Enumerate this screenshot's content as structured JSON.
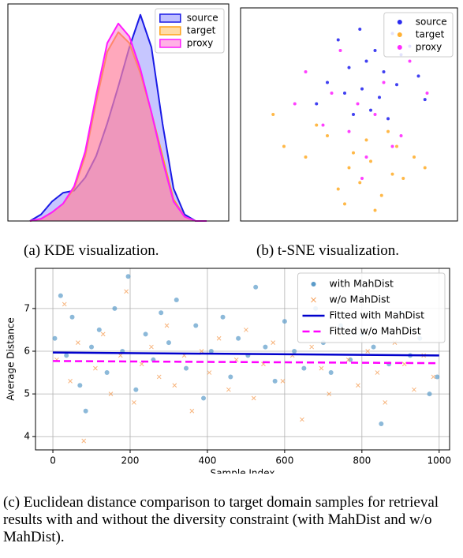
{
  "chart_data": [
    {
      "type": "kde",
      "caption": "(a) KDE visualization.",
      "legend": "upper right",
      "xlim": [
        0,
        100
      ],
      "ylim": [
        0,
        1
      ],
      "x": [
        10,
        15,
        20,
        25,
        30,
        35,
        40,
        45,
        50,
        55,
        60,
        65,
        70,
        75,
        80,
        85,
        90
      ],
      "series": [
        {
          "name": "source",
          "color": "#1a1ae6",
          "fill": "#8080ff",
          "values": [
            0,
            0.03,
            0.09,
            0.13,
            0.14,
            0.2,
            0.3,
            0.45,
            0.62,
            0.8,
            0.95,
            0.8,
            0.45,
            0.15,
            0.03,
            0,
            0
          ]
        },
        {
          "name": "target",
          "color": "#ffa31a",
          "fill": "#ffb84d",
          "values": [
            0,
            0.01,
            0.04,
            0.08,
            0.15,
            0.3,
            0.55,
            0.78,
            0.87,
            0.82,
            0.68,
            0.5,
            0.3,
            0.1,
            0.02,
            0,
            0
          ]
        },
        {
          "name": "proxy",
          "color": "#ff1aff",
          "fill": "#ff66cc",
          "values": [
            0,
            0.01,
            0.04,
            0.08,
            0.16,
            0.32,
            0.58,
            0.82,
            0.91,
            0.85,
            0.7,
            0.5,
            0.28,
            0.09,
            0.02,
            0,
            0
          ]
        }
      ]
    },
    {
      "type": "scatter",
      "caption": "(b) t-SNE visualization.",
      "legend": "upper right",
      "xlim": [
        0,
        100
      ],
      "ylim": [
        0,
        100
      ],
      "series": [
        {
          "name": "source",
          "color": "#2b2bf0",
          "x": [
            45,
            55,
            62,
            70,
            78,
            50,
            58,
            66,
            74,
            82,
            40,
            48,
            56,
            64,
            72,
            52,
            60,
            68,
            35,
            85
          ],
          "values": [
            85,
            90,
            80,
            88,
            82,
            72,
            75,
            70,
            78,
            68,
            65,
            60,
            62,
            58,
            64,
            50,
            52,
            48,
            55,
            57
          ]
        },
        {
          "name": "target",
          "color": "#ffb033",
          "x": [
            20,
            30,
            40,
            50,
            60,
            70,
            80,
            45,
            55,
            65,
            75,
            35,
            58,
            68,
            48,
            62,
            72,
            85,
            15,
            52
          ],
          "values": [
            35,
            30,
            40,
            25,
            28,
            22,
            30,
            15,
            18,
            12,
            20,
            45,
            38,
            42,
            8,
            5,
            35,
            25,
            50,
            32
          ]
        },
        {
          "name": "proxy",
          "color": "#ff2bff",
          "x": [
            30,
            42,
            54,
            66,
            78,
            38,
            50,
            62,
            74,
            46,
            58,
            70,
            25,
            86,
            56
          ],
          "values": [
            70,
            60,
            55,
            65,
            75,
            45,
            42,
            50,
            40,
            80,
            30,
            35,
            55,
            60,
            20
          ]
        }
      ]
    },
    {
      "type": "scatter",
      "caption": "(c) Euclidean distance comparison to target domain samples for retrieval results with and without the diversity constraint (with MahDist and w/o MahDist).",
      "xlabel": "Sample Index",
      "ylabel": "Average Distance",
      "legend": "upper right",
      "grid": true,
      "xlim": [
        -45,
        1027
      ],
      "ylim": [
        3.69,
        7.94
      ],
      "xticks": [
        0,
        200,
        400,
        600,
        800,
        1000
      ],
      "yticks": [
        4,
        5,
        6,
        7
      ],
      "series": [
        {
          "name": "with MahDist",
          "color": "#5b9bc9",
          "marker": "circle",
          "x": [
            5,
            20,
            35,
            50,
            70,
            85,
            100,
            120,
            140,
            160,
            180,
            195,
            215,
            240,
            260,
            280,
            300,
            320,
            345,
            370,
            390,
            410,
            440,
            460,
            480,
            505,
            525,
            550,
            575,
            600,
            625,
            650,
            680,
            700,
            720,
            745,
            770,
            800,
            830,
            850,
            870,
            900,
            925,
            950,
            975,
            995
          ],
          "values": [
            6.3,
            7.3,
            5.9,
            6.8,
            5.2,
            4.6,
            6.1,
            6.5,
            5.5,
            7.0,
            6.0,
            7.75,
            5.1,
            6.4,
            5.8,
            6.9,
            6.2,
            7.2,
            5.6,
            6.6,
            4.9,
            6.0,
            6.8,
            5.4,
            6.3,
            5.9,
            7.5,
            6.1,
            5.3,
            6.7,
            6.0,
            5.6,
            7.0,
            6.2,
            5.5,
            6.6,
            5.8,
            6.4,
            6.1,
            4.3,
            5.7,
            6.9,
            5.9,
            6.3,
            5.0,
            5.4
          ]
        },
        {
          "name": "w/o MahDist",
          "color": "#f5a05a",
          "marker": "x",
          "x": [
            10,
            30,
            45,
            65,
            80,
            110,
            130,
            150,
            175,
            190,
            210,
            230,
            255,
            275,
            295,
            315,
            340,
            360,
            385,
            405,
            430,
            455,
            475,
            500,
            520,
            545,
            570,
            595,
            620,
            645,
            670,
            695,
            715,
            740,
            765,
            790,
            815,
            840,
            860,
            885,
            910,
            935,
            960,
            985
          ],
          "values": [
            5.8,
            7.1,
            5.3,
            6.2,
            3.9,
            5.6,
            6.4,
            5.0,
            5.9,
            7.4,
            4.8,
            5.7,
            6.1,
            5.4,
            6.6,
            5.2,
            5.9,
            4.6,
            6.0,
            5.5,
            6.3,
            5.1,
            5.8,
            6.5,
            4.9,
            5.7,
            6.2,
            5.3,
            5.9,
            4.4,
            6.1,
            5.6,
            5.0,
            6.4,
            5.8,
            5.2,
            6.0,
            5.5,
            4.8,
            6.2,
            5.7,
            5.1,
            5.9,
            5.4
          ]
        },
        {
          "name": "Fitted with MahDist",
          "color": "#0000cc",
          "marker": "line",
          "x": [
            0,
            1000
          ],
          "values": [
            5.97,
            5.9
          ]
        },
        {
          "name": "Fitted w/o MahDist",
          "color": "#ff00ff",
          "marker": "dash",
          "x": [
            0,
            1000
          ],
          "values": [
            5.77,
            5.72
          ]
        }
      ]
    }
  ]
}
